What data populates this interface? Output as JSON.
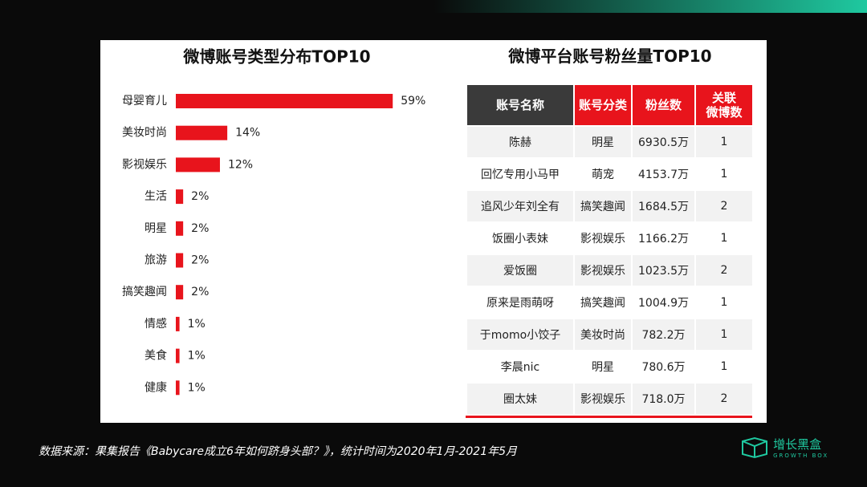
{
  "chart_data": {
    "type": "hbar",
    "title": "微博账号类型分布TOP10",
    "categories": [
      "母婴育儿",
      "美妆时尚",
      "影视娱乐",
      "生活",
      "明星",
      "旅游",
      "搞笑趣闻",
      "情感",
      "美食",
      "健康"
    ],
    "values": [
      59,
      14,
      12,
      2,
      2,
      2,
      2,
      1,
      1,
      1
    ],
    "value_labels": [
      "59%",
      "14%",
      "12%",
      "2%",
      "2%",
      "2%",
      "2%",
      "1%",
      "1%",
      "1%"
    ],
    "color": "#e8141c",
    "xlim": [
      0,
      100
    ]
  },
  "table": {
    "title": "微博平台账号粉丝量TOP10",
    "header": [
      "账号名称",
      "账号分类",
      "粉丝数",
      "关联\n微博数"
    ],
    "rows": [
      [
        "陈赫",
        "明星",
        "6930.5万",
        1
      ],
      [
        "回忆专用小马甲",
        "萌宠",
        "4153.7万",
        1
      ],
      [
        "追风少年刘全有",
        "搞笑趣闻",
        "1684.5万",
        2
      ],
      [
        "饭圈小表妹",
        "影视娱乐",
        "1166.2万",
        1
      ],
      [
        "爱饭圈",
        "影视娱乐",
        "1023.5万",
        2
      ],
      [
        "原来是雨萌呀",
        "搞笑趣闻",
        "1004.9万",
        1
      ],
      [
        "于momo小饺子",
        "美妆时尚",
        "782.2万",
        1
      ],
      [
        "李晨nic",
        "明星",
        "780.6万",
        1
      ],
      [
        "圈太妹",
        "影视娱乐",
        "718.0万",
        2
      ]
    ]
  },
  "footer": {
    "source": "数据来源：果集报告《Babycare成立6年如何跻身头部？》，统计时间为2020年1月-2021年5月",
    "logo": "增长黑盒",
    "logo_sub": "GROWTH BOX"
  }
}
